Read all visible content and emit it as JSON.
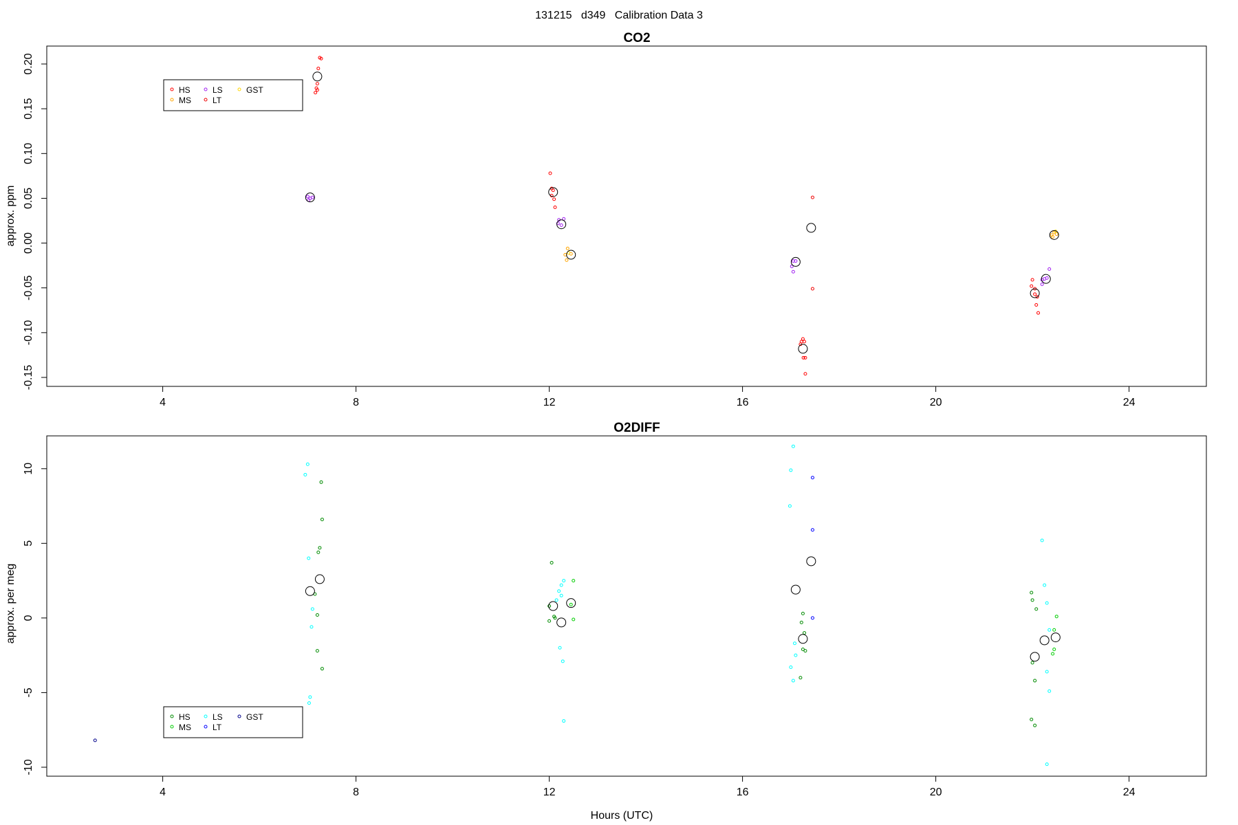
{
  "figure": {
    "title": "131215   d349   Calibration Data 3",
    "xlabel": "Hours (UTC)"
  },
  "chart_data": [
    {
      "type": "scatter",
      "title": "CO2",
      "xlabel": "",
      "ylabel": "approx. ppm",
      "xlim": [
        1.6,
        25.6
      ],
      "ylim": [
        -0.16,
        0.22
      ],
      "xticks": [
        4,
        8,
        12,
        16,
        20,
        24
      ],
      "yticks": [
        -0.15,
        -0.1,
        -0.05,
        0.0,
        0.05,
        0.1,
        0.15,
        0.2
      ],
      "ytick_labels": [
        "-0.15",
        "-0.10",
        "-0.05",
        "0.00",
        "0.05",
        "0.10",
        "0.15",
        "0.20"
      ],
      "grid": false,
      "legend": {
        "placement": "top-left",
        "entries": [
          {
            "name": "HS",
            "color": "#ff0000"
          },
          {
            "name": "MS",
            "color": "#ffa500"
          },
          {
            "name": "LS",
            "color": "#a020f0"
          },
          {
            "name": "LT",
            "color": "#ee0000"
          },
          {
            "name": "GST",
            "color": "#ffd700"
          }
        ]
      },
      "series": [
        {
          "name": "HS",
          "color": "#ff0000",
          "points": [
            [
              7.25,
              0.207
            ],
            [
              7.28,
              0.206
            ],
            [
              7.22,
              0.195
            ],
            [
              7.2,
              0.178
            ],
            [
              7.18,
              0.173
            ],
            [
              7.16,
              0.168
            ],
            [
              7.2,
              0.171
            ],
            [
              12.02,
              0.078
            ],
            [
              12.05,
              0.061
            ],
            [
              12.08,
              0.059
            ],
            [
              12.05,
              0.053
            ],
            [
              12.1,
              0.049
            ],
            [
              12.12,
              0.04
            ],
            [
              17.25,
              -0.107
            ],
            [
              17.22,
              -0.11
            ],
            [
              17.28,
              -0.11
            ],
            [
              17.2,
              -0.113
            ],
            [
              17.26,
              -0.128
            ],
            [
              17.3,
              -0.128
            ],
            [
              17.3,
              -0.146
            ],
            [
              22.0,
              -0.041
            ],
            [
              21.98,
              -0.048
            ],
            [
              22.05,
              -0.051
            ],
            [
              22.05,
              -0.057
            ],
            [
              22.1,
              -0.06
            ],
            [
              22.08,
              -0.069
            ],
            [
              22.12,
              -0.078
            ]
          ]
        },
        {
          "name": "MS",
          "color": "#ffa500",
          "points": [
            [
              12.38,
              -0.006
            ],
            [
              12.33,
              -0.013
            ],
            [
              12.45,
              -0.012
            ],
            [
              12.36,
              -0.019
            ],
            [
              22.45,
              0.012
            ],
            [
              22.4,
              0.009
            ],
            [
              22.5,
              0.01
            ],
            [
              22.42,
              0.007
            ]
          ]
        },
        {
          "name": "LS",
          "color": "#a020f0",
          "points": [
            [
              7.0,
              0.052
            ],
            [
              7.05,
              0.05
            ],
            [
              7.1,
              0.051
            ],
            [
              7.02,
              0.048
            ],
            [
              12.2,
              0.026
            ],
            [
              12.3,
              0.027
            ],
            [
              12.25,
              0.02
            ],
            [
              12.18,
              0.022
            ],
            [
              17.05,
              -0.02
            ],
            [
              17.1,
              -0.02
            ],
            [
              17.02,
              -0.026
            ],
            [
              17.05,
              -0.032
            ],
            [
              22.2,
              -0.041
            ],
            [
              22.3,
              -0.039
            ],
            [
              22.35,
              -0.029
            ],
            [
              22.2,
              -0.046
            ],
            [
              22.25,
              -0.04
            ]
          ]
        },
        {
          "name": "LT",
          "color": "#ee0000",
          "points": [
            [
              17.45,
              0.051
            ],
            [
              17.45,
              -0.051
            ]
          ]
        },
        {
          "name": "GST",
          "color": "#ffd700",
          "points": [
            [
              12.4,
              -0.011
            ],
            [
              22.48,
              0.013
            ]
          ]
        },
        {
          "name": "mean",
          "color": "#000000",
          "large": true,
          "points": [
            [
              7.2,
              0.186
            ],
            [
              7.05,
              0.051
            ],
            [
              12.08,
              0.057
            ],
            [
              12.25,
              0.021
            ],
            [
              12.45,
              -0.013
            ],
            [
              17.42,
              0.017
            ],
            [
              17.1,
              -0.021
            ],
            [
              17.25,
              -0.118
            ],
            [
              22.05,
              -0.056
            ],
            [
              22.28,
              -0.04
            ],
            [
              22.45,
              0.009
            ]
          ]
        }
      ]
    },
    {
      "type": "scatter",
      "title": "O2DIFF",
      "xlabel": "Hours (UTC)",
      "ylabel": "approx. per meg",
      "xlim": [
        1.6,
        25.6
      ],
      "ylim": [
        -10.6,
        12.2
      ],
      "xticks": [
        4,
        8,
        12,
        16,
        20,
        24
      ],
      "yticks": [
        -10,
        -5,
        0,
        5,
        10
      ],
      "ytick_labels": [
        "-10",
        "-5",
        "0",
        "5",
        "10"
      ],
      "grid": false,
      "legend": {
        "placement": "bottom-left",
        "entries": [
          {
            "name": "HS",
            "color": "#008b00"
          },
          {
            "name": "MS",
            "color": "#00cd00"
          },
          {
            "name": "LS",
            "color": "#00ffff"
          },
          {
            "name": "LT",
            "color": "#0000ff"
          },
          {
            "name": "GST",
            "color": "#00008b"
          }
        ]
      },
      "series": [
        {
          "name": "HS",
          "color": "#008b00",
          "points": [
            [
              7.28,
              9.1
            ],
            [
              7.3,
              6.6
            ],
            [
              7.25,
              4.7
            ],
            [
              7.22,
              4.4
            ],
            [
              7.15,
              1.6
            ],
            [
              7.2,
              0.2
            ],
            [
              7.2,
              -2.2
            ],
            [
              7.3,
              -3.4
            ],
            [
              12.05,
              3.7
            ],
            [
              12.0,
              0.8
            ],
            [
              12.1,
              0.1
            ],
            [
              12.12,
              0.0
            ],
            [
              12.0,
              -0.2
            ],
            [
              17.25,
              0.3
            ],
            [
              17.22,
              -0.3
            ],
            [
              17.28,
              -1.0
            ],
            [
              17.3,
              -2.2
            ],
            [
              17.25,
              -2.1
            ],
            [
              17.2,
              -4.0
            ],
            [
              21.98,
              1.7
            ],
            [
              22.0,
              1.2
            ],
            [
              22.08,
              0.6
            ],
            [
              22.0,
              -3.0
            ],
            [
              22.05,
              -4.2
            ],
            [
              21.98,
              -6.8
            ],
            [
              22.05,
              -7.2
            ]
          ]
        },
        {
          "name": "MS",
          "color": "#00cd00",
          "points": [
            [
              12.5,
              2.5
            ],
            [
              12.45,
              0.9
            ],
            [
              12.5,
              -0.1
            ],
            [
              22.5,
              0.1
            ],
            [
              22.45,
              -0.8
            ],
            [
              22.45,
              -2.1
            ],
            [
              22.42,
              -2.4
            ]
          ]
        },
        {
          "name": "LS",
          "color": "#00ffff",
          "points": [
            [
              7.0,
              10.3
            ],
            [
              6.95,
              9.6
            ],
            [
              7.02,
              4.0
            ],
            [
              7.1,
              0.6
            ],
            [
              7.08,
              -0.6
            ],
            [
              7.05,
              -5.3
            ],
            [
              7.03,
              -5.7
            ],
            [
              12.3,
              2.5
            ],
            [
              12.25,
              2.2
            ],
            [
              12.2,
              1.8
            ],
            [
              12.25,
              1.5
            ],
            [
              12.15,
              1.2
            ],
            [
              12.22,
              -2.0
            ],
            [
              12.28,
              -2.9
            ],
            [
              12.3,
              -6.9
            ],
            [
              17.05,
              11.5
            ],
            [
              17.0,
              9.9
            ],
            [
              16.98,
              7.5
            ],
            [
              17.08,
              -1.7
            ],
            [
              17.1,
              -2.5
            ],
            [
              17.0,
              -3.3
            ],
            [
              17.05,
              -4.2
            ],
            [
              22.2,
              5.2
            ],
            [
              22.25,
              2.2
            ],
            [
              22.3,
              1.0
            ],
            [
              22.35,
              -0.8
            ],
            [
              22.3,
              -3.6
            ],
            [
              22.35,
              -4.9
            ],
            [
              22.3,
              -9.8
            ]
          ]
        },
        {
          "name": "LT",
          "color": "#0000ff",
          "points": [
            [
              17.45,
              9.4
            ],
            [
              17.45,
              5.9
            ],
            [
              17.45,
              0.0
            ]
          ]
        },
        {
          "name": "GST",
          "color": "#00008b",
          "points": [
            [
              2.6,
              -8.2
            ]
          ]
        },
        {
          "name": "mean",
          "color": "#000000",
          "large": true,
          "points": [
            [
              7.05,
              1.8
            ],
            [
              7.25,
              2.6
            ],
            [
              12.08,
              0.8
            ],
            [
              12.25,
              -0.3
            ],
            [
              12.45,
              1.0
            ],
            [
              17.1,
              1.9
            ],
            [
              17.42,
              3.8
            ],
            [
              17.25,
              -1.4
            ],
            [
              22.05,
              -2.6
            ],
            [
              22.25,
              -1.5
            ],
            [
              22.48,
              -1.3
            ]
          ]
        }
      ]
    }
  ]
}
